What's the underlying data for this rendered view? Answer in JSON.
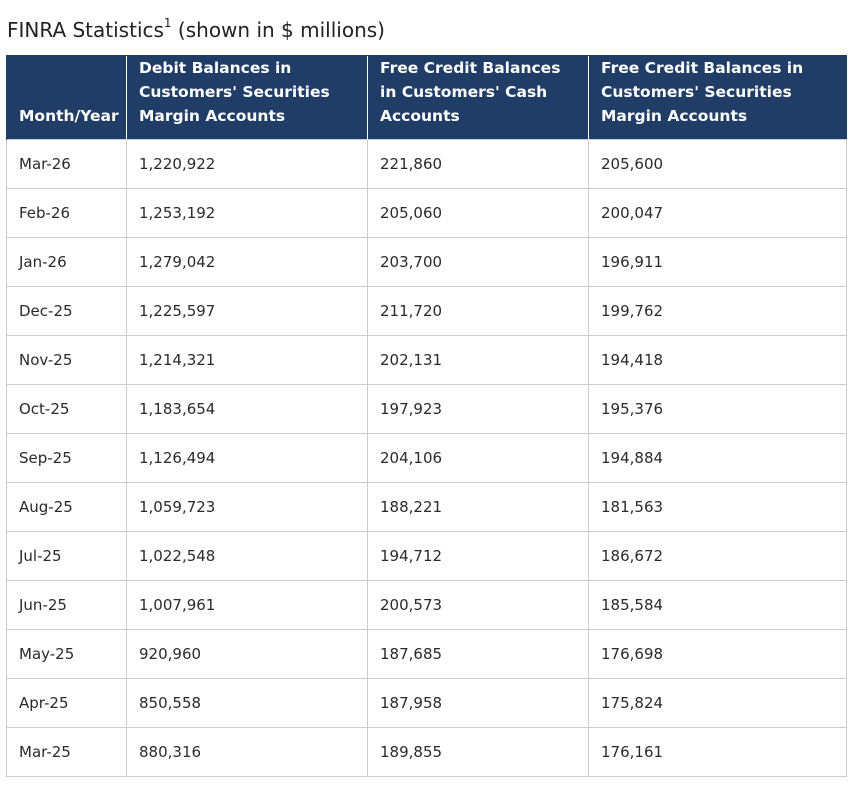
{
  "title": {
    "main": "FINRA Statistics",
    "footnote": "1",
    "suffix": " (shown in $ millions)"
  },
  "table": {
    "headers": [
      "Month/Year",
      "Debit Balances in Customers' Securities Margin Accounts",
      "Free Credit Balances in Customers' Cash Accounts",
      "Free Credit Balances in Customers' Securities Margin Accounts"
    ],
    "rows": [
      [
        "Mar-26",
        "1,220,922",
        "221,860",
        "205,600"
      ],
      [
        "Feb-26",
        "1,253,192",
        "205,060",
        "200,047"
      ],
      [
        "Jan-26",
        "1,279,042",
        "203,700",
        "196,911"
      ],
      [
        "Dec-25",
        "1,225,597",
        "211,720",
        "199,762"
      ],
      [
        "Nov-25",
        "1,214,321",
        "202,131",
        "194,418"
      ],
      [
        "Oct-25",
        "1,183,654",
        "197,923",
        "195,376"
      ],
      [
        "Sep-25",
        "1,126,494",
        "204,106",
        "194,884"
      ],
      [
        "Aug-25",
        "1,059,723",
        "188,221",
        "181,563"
      ],
      [
        "Jul-25",
        "1,022,548",
        "194,712",
        "186,672"
      ],
      [
        "Jun-25",
        "1,007,961",
        "200,573",
        "185,584"
      ],
      [
        "May-25",
        "920,960",
        "187,685",
        "176,698"
      ],
      [
        "Apr-25",
        "850,558",
        "187,958",
        "175,824"
      ],
      [
        "Mar-25",
        "880,316",
        "189,855",
        "176,161"
      ]
    ]
  },
  "colors": {
    "header_background": "#1f3d66",
    "header_text": "#ffffff",
    "grid_border": "#cccccc"
  }
}
